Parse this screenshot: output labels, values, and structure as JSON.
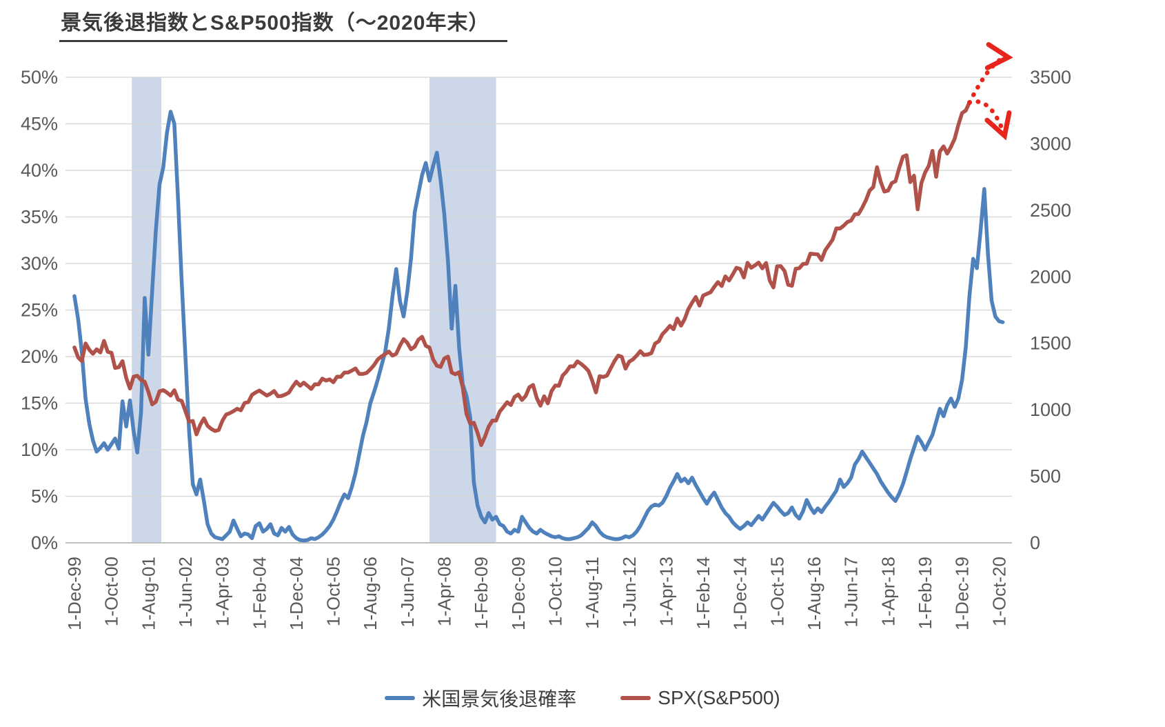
{
  "chart_data": {
    "type": "line",
    "title": "景気後退指数とS&P500指数（～2020年末）",
    "start_month_label": "1-Dec-99",
    "x_tick_interval_months": 10,
    "x_tick_labels": [
      "1-Dec-99",
      "1-Oct-00",
      "1-Aug-01",
      "1-Jun-02",
      "1-Apr-03",
      "1-Feb-04",
      "1-Dec-04",
      "1-Oct-05",
      "1-Aug-06",
      "1-Jun-07",
      "1-Apr-08",
      "1-Feb-09",
      "1-Dec-09",
      "1-Oct-10",
      "1-Aug-11",
      "1-Jun-12",
      "1-Apr-13",
      "1-Feb-14",
      "1-Dec-14",
      "1-Oct-15",
      "1-Aug-16",
      "1-Jun-17",
      "1-Apr-18",
      "1-Feb-19",
      "1-Dec-19",
      "1-Oct-20"
    ],
    "left_axis": {
      "min": 0,
      "max": 50,
      "tick_step": 5,
      "tick_labels": [
        "0%",
        "5%",
        "10%",
        "15%",
        "20%",
        "25%",
        "30%",
        "35%",
        "40%",
        "45%",
        "50%"
      ],
      "grid": true
    },
    "right_axis": {
      "min": 0,
      "max": 3500,
      "tick_step": 500,
      "tick_labels": [
        "0",
        "500",
        "1000",
        "1500",
        "2000",
        "2500",
        "3000",
        "3500"
      ],
      "grid": false
    },
    "gridline_color": "#d9d9d9",
    "band_color": "#ccd8ea",
    "recession_bands": [
      {
        "from_month": 15.5,
        "to_month": 23.5
      },
      {
        "from_month": 96,
        "to_month": 114
      }
    ],
    "series": [
      {
        "name": "米国景気後退確率",
        "axis": "left",
        "color": "#4f81bd",
        "values": [
          26.5,
          24.0,
          20.5,
          15.5,
          12.8,
          11.0,
          9.8,
          10.2,
          10.7,
          10.0,
          10.6,
          11.2,
          10.1,
          15.2,
          12.5,
          15.3,
          12.0,
          9.7,
          14.0,
          26.3,
          20.2,
          27.0,
          33.5,
          38.5,
          40.3,
          44.0,
          46.3,
          45.0,
          37.0,
          28.0,
          20.0,
          12.0,
          6.3,
          5.2,
          6.8,
          4.5,
          2.0,
          1.0,
          0.6,
          0.5,
          0.4,
          0.8,
          1.2,
          2.4,
          1.5,
          0.7,
          1.0,
          0.9,
          0.5,
          1.8,
          2.1,
          1.2,
          1.5,
          2.0,
          1.0,
          0.8,
          1.6,
          1.2,
          1.7,
          0.9,
          0.5,
          0.3,
          0.25,
          0.3,
          0.5,
          0.4,
          0.6,
          0.9,
          1.3,
          1.8,
          2.5,
          3.4,
          4.4,
          5.2,
          4.8,
          6.0,
          7.5,
          9.5,
          11.5,
          13.0,
          15.0,
          16.2,
          17.5,
          19.0,
          20.5,
          23.0,
          26.5,
          29.4,
          26.0,
          24.3,
          27.0,
          30.5,
          35.5,
          37.5,
          39.5,
          40.8,
          38.9,
          40.5,
          41.9,
          39.0,
          35.3,
          30.2,
          23.0,
          27.6,
          21.0,
          17.0,
          15.8,
          13.5,
          6.5,
          4.0,
          2.8,
          2.2,
          3.2,
          2.5,
          2.8,
          2.0,
          1.8,
          1.2,
          1.0,
          1.4,
          1.2,
          2.8,
          2.2,
          1.6,
          1.2,
          1.0,
          1.4,
          1.1,
          0.9,
          0.7,
          0.6,
          0.7,
          0.5,
          0.4,
          0.4,
          0.5,
          0.6,
          0.8,
          1.2,
          1.6,
          2.2,
          1.8,
          1.2,
          0.8,
          0.6,
          0.5,
          0.4,
          0.4,
          0.5,
          0.7,
          0.6,
          0.8,
          1.2,
          1.8,
          2.6,
          3.4,
          3.9,
          4.1,
          4.0,
          4.3,
          5.0,
          5.9,
          6.6,
          7.4,
          6.6,
          6.9,
          6.4,
          7.0,
          6.2,
          5.5,
          4.8,
          4.2,
          4.9,
          5.4,
          4.6,
          3.8,
          3.2,
          2.8,
          2.2,
          1.8,
          1.5,
          1.8,
          2.2,
          1.9,
          2.4,
          2.9,
          2.5,
          3.1,
          3.7,
          4.3,
          3.9,
          3.4,
          3.0,
          3.2,
          3.8,
          3.0,
          2.6,
          3.4,
          4.6,
          3.8,
          3.2,
          3.7,
          3.3,
          3.9,
          4.4,
          5.0,
          5.6,
          6.8,
          6.0,
          6.4,
          7.0,
          8.4,
          9.0,
          9.8,
          9.2,
          8.6,
          8.0,
          7.4,
          6.6,
          6.0,
          5.4,
          4.9,
          4.5,
          5.3,
          6.3,
          7.6,
          9.0,
          10.2,
          11.4,
          10.8,
          10.0,
          10.8,
          11.6,
          13.0,
          14.4,
          13.6,
          14.8,
          15.5,
          14.6,
          15.5,
          17.5,
          21.0,
          26.5,
          30.5,
          29.5,
          33.5,
          38.0,
          31.0,
          26.0,
          24.3,
          23.8,
          23.7
        ]
      },
      {
        "name": "SPX(S&P500)",
        "axis": "right",
        "color": "#b0524a",
        "values": [
          1469,
          1394,
          1366,
          1499,
          1452,
          1421,
          1455,
          1431,
          1518,
          1436,
          1429,
          1315,
          1320,
          1366,
          1240,
          1160,
          1249,
          1256,
          1224,
          1211,
          1134,
          1041,
          1060,
          1139,
          1148,
          1130,
          1107,
          1147,
          1077,
          1067,
          990,
          911,
          916,
          815,
          886,
          936,
          880,
          856,
          841,
          848,
          917,
          964,
          975,
          990,
          1008,
          996,
          1051,
          1058,
          1112,
          1131,
          1145,
          1126,
          1107,
          1121,
          1141,
          1102,
          1104,
          1115,
          1130,
          1174,
          1212,
          1181,
          1204,
          1181,
          1157,
          1192,
          1191,
          1234,
          1220,
          1229,
          1207,
          1249,
          1248,
          1280,
          1281,
          1295,
          1311,
          1270,
          1270,
          1277,
          1304,
          1336,
          1378,
          1401,
          1418,
          1438,
          1407,
          1421,
          1482,
          1531,
          1503,
          1455,
          1474,
          1527,
          1549,
          1481,
          1468,
          1379,
          1331,
          1323,
          1386,
          1400,
          1280,
          1267,
          1283,
          1166,
          969,
          896,
          903,
          826,
          735,
          798,
          873,
          919,
          919,
          987,
          1021,
          1057,
          1036,
          1096,
          1115,
          1074,
          1104,
          1169,
          1187,
          1089,
          1031,
          1102,
          1049,
          1141,
          1183,
          1181,
          1258,
          1286,
          1327,
          1326,
          1364,
          1345,
          1321,
          1292,
          1219,
          1131,
          1253,
          1247,
          1258,
          1312,
          1366,
          1408,
          1398,
          1310,
          1362,
          1379,
          1407,
          1441,
          1412,
          1416,
          1426,
          1498,
          1515,
          1569,
          1598,
          1631,
          1606,
          1686,
          1633,
          1682,
          1757,
          1806,
          1848,
          1783,
          1859,
          1872,
          1884,
          1924,
          1960,
          1931,
          2003,
          1972,
          2018,
          2068,
          2059,
          1995,
          2105,
          2068,
          2086,
          2107,
          2063,
          2104,
          1972,
          1920,
          2079,
          2080,
          2044,
          1940,
          1932,
          2060,
          2065,
          2097,
          2099,
          2174,
          2171,
          2168,
          2126,
          2199,
          2239,
          2279,
          2364,
          2363,
          2384,
          2412,
          2423,
          2470,
          2472,
          2519,
          2575,
          2648,
          2674,
          2824,
          2714,
          2641,
          2648,
          2705,
          2718,
          2816,
          2902,
          2914,
          2712,
          2760,
          2507,
          2704,
          2784,
          2834,
          2946,
          2752,
          2942,
          2980,
          2926,
          2977,
          3038,
          3141,
          3231,
          3250,
          3310
        ]
      }
    ],
    "annotations": {
      "scenario_arrows": {
        "color": "#e8251c",
        "style": "dotted",
        "from_month": 242,
        "from_value": 3310,
        "branches": [
          {
            "to_month": 252.5,
            "to_value": 3650,
            "direction": "up"
          },
          {
            "to_month": 251.5,
            "to_value": 3060,
            "direction": "down"
          }
        ]
      }
    },
    "legend_position": "bottom"
  }
}
